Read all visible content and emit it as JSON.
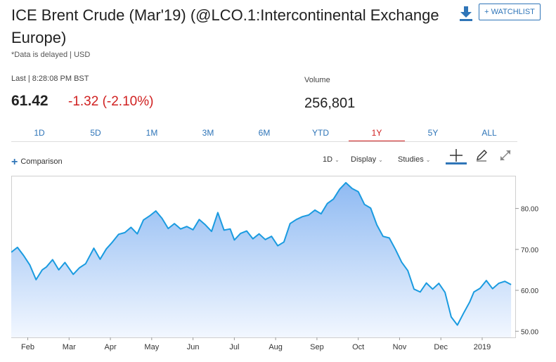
{
  "header": {
    "title": "ICE Brent Crude (Mar'19) (@LCO.1:Intercontinental Exchange Europe)",
    "delayed_note": "*Data is delayed | USD",
    "watchlist_label": "+ WATCHLIST",
    "download_icon": "download-icon"
  },
  "quote": {
    "last_label": "Last | 8:28:08 PM BST",
    "last_price": "61.42",
    "change": "-1.32 (-2.10%)",
    "volume_label": "Volume",
    "volume_value": "256,801",
    "colors": {
      "negative": "#d02020",
      "accent": "#2f75b8"
    }
  },
  "range_tabs": [
    {
      "label": "1D",
      "active": false
    },
    {
      "label": "5D",
      "active": false
    },
    {
      "label": "1M",
      "active": false
    },
    {
      "label": "3M",
      "active": false
    },
    {
      "label": "6M",
      "active": false
    },
    {
      "label": "YTD",
      "active": false
    },
    {
      "label": "1Y",
      "active": true
    },
    {
      "label": "5Y",
      "active": false
    },
    {
      "label": "ALL",
      "active": false
    }
  ],
  "toolbar": {
    "comparison_label": "Comparison",
    "interval_label": "1D",
    "display_label": "Display",
    "studies_label": "Studies",
    "icons": [
      "crosshair-icon",
      "pencil-icon",
      "expand-icon"
    ]
  },
  "chart_data": {
    "type": "area",
    "ylim": [
      48.5,
      88
    ],
    "yticks": [
      50,
      60,
      70,
      80
    ],
    "ytick_labels": [
      "50.00",
      "60.00",
      "70.00",
      "80.00"
    ],
    "xlim": [
      0,
      12.2
    ],
    "month_ticks": [
      {
        "x": 0.4,
        "label": "Feb"
      },
      {
        "x": 1.4,
        "label": "Mar"
      },
      {
        "x": 2.4,
        "label": "Apr"
      },
      {
        "x": 3.4,
        "label": "May"
      },
      {
        "x": 4.4,
        "label": "Jun"
      },
      {
        "x": 5.4,
        "label": "Jul"
      },
      {
        "x": 6.4,
        "label": "Aug"
      },
      {
        "x": 7.4,
        "label": "Sep"
      },
      {
        "x": 8.4,
        "label": "Oct"
      },
      {
        "x": 9.4,
        "label": "Nov"
      },
      {
        "x": 10.4,
        "label": "Dec"
      },
      {
        "x": 11.4,
        "label": "2019"
      }
    ],
    "grid": false,
    "line_color": "#1a9be0",
    "fill_top": "#8fbaf2",
    "fill_bottom": "#f2f7ff",
    "series": [
      {
        "x": [
          0,
          0.15,
          0.3,
          0.45,
          0.6,
          0.75,
          0.85,
          1.0,
          1.15,
          1.3,
          1.5,
          1.65,
          1.8,
          2.0,
          2.15,
          2.3,
          2.45,
          2.6,
          2.75,
          2.9,
          3.05,
          3.2,
          3.35,
          3.5,
          3.65,
          3.8,
          3.95,
          4.1,
          4.25,
          4.4,
          4.55,
          4.7,
          4.85,
          5.0,
          5.15,
          5.3,
          5.4,
          5.55,
          5.7,
          5.85,
          6.0,
          6.15,
          6.3,
          6.45,
          6.6,
          6.75,
          6.9,
          7.05,
          7.2,
          7.35,
          7.5,
          7.65,
          7.8,
          7.95,
          8.1,
          8.25,
          8.4,
          8.55,
          8.7,
          8.85,
          9.0,
          9.15,
          9.3,
          9.45,
          9.6,
          9.75,
          9.9,
          10.05,
          10.2,
          10.35,
          10.5,
          10.65,
          10.8,
          10.95,
          11.1,
          11.2,
          11.35,
          11.5,
          11.65,
          11.8,
          11.95,
          12.1
        ],
        "y": [
          69.3,
          70.5,
          68.5,
          66.2,
          62.6,
          65.0,
          65.7,
          67.5,
          65.0,
          66.8,
          63.9,
          65.5,
          66.5,
          70.3,
          67.6,
          70.1,
          71.8,
          73.7,
          74.1,
          75.4,
          73.8,
          77.2,
          78.2,
          79.4,
          77.6,
          75.1,
          76.3,
          75.0,
          75.6,
          74.8,
          77.3,
          76.0,
          74.4,
          79.0,
          74.7,
          75.0,
          72.3,
          73.9,
          74.5,
          72.6,
          73.8,
          72.4,
          73.2,
          70.9,
          71.8,
          76.3,
          77.3,
          78.0,
          78.4,
          79.6,
          78.7,
          81.2,
          82.3,
          84.7,
          86.3,
          84.9,
          84.1,
          81.0,
          80.1,
          76.0,
          73.2,
          72.8,
          70.0,
          66.9,
          64.8,
          60.3,
          59.6,
          61.8,
          60.3,
          61.7,
          59.5,
          53.5,
          51.5,
          54.4,
          57.2,
          59.6,
          60.5,
          62.4,
          60.4,
          61.7,
          62.2,
          61.4
        ]
      }
    ]
  }
}
